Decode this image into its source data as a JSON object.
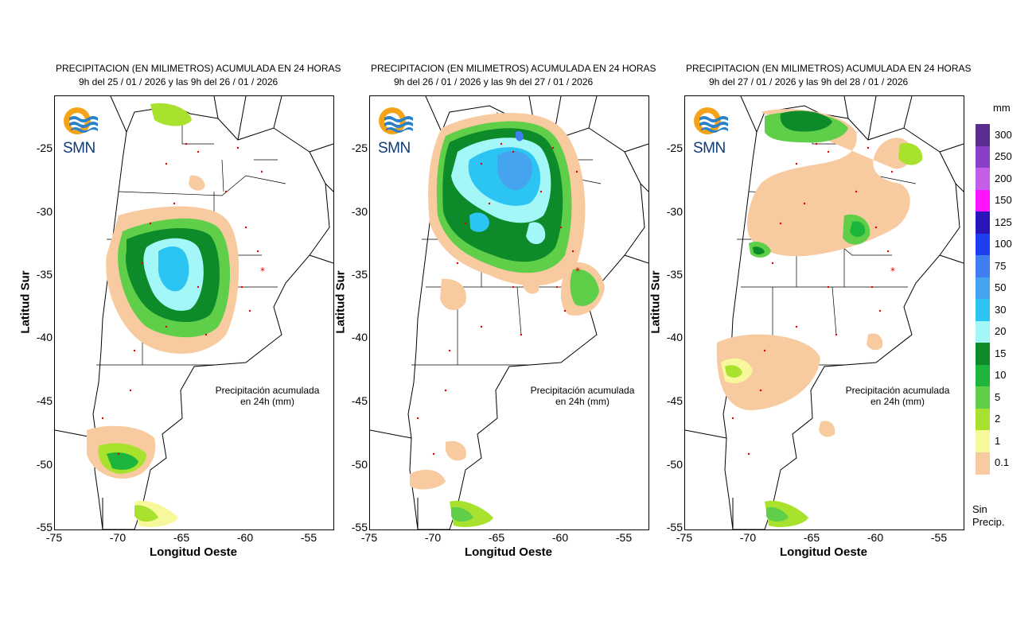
{
  "panels": [
    {
      "title": "PRECIPITACION (EN MILIMETROS) ACUMULADA EN 24 HORAS",
      "subtitle": "9h del 25 / 01 / 2026  y las 9h del 26 / 01 / 2026",
      "note_line1": "Precipitación acumulada",
      "note_line2": "en 24h (mm)"
    },
    {
      "title": "PRECIPITACION (EN MILIMETROS) ACUMULADA EN 24 HORAS",
      "subtitle": "9h del 26 / 01 / 2026  y las 9h del 27 / 01 / 2026",
      "note_line1": "Precipitación acumulada",
      "note_line2": "en 24h (mm)"
    },
    {
      "title": "PRECIPITACION (EN MILIMETROS) ACUMULADA EN 24 HORAS",
      "subtitle": "9h del 27 / 01 / 2026  y las 9h del 28 / 01 / 2026",
      "note_line1": "Precipitación acumulada",
      "note_line2": "en 24h (mm)"
    }
  ],
  "axes": {
    "xlabel": "Longitud Oeste",
    "ylabel": "Latitud Sur",
    "xticks": [
      "-75",
      "-70",
      "-65",
      "-60",
      "-55"
    ],
    "yticks": [
      "-25",
      "-30",
      "-35",
      "-40",
      "-45",
      "-50",
      "-55"
    ]
  },
  "logo": {
    "text": "SMN"
  },
  "legend": {
    "unit": "mm",
    "items": [
      {
        "label": "300",
        "color": "#5c2d91"
      },
      {
        "label": "250",
        "color": "#8a3fc9"
      },
      {
        "label": "200",
        "color": "#c25ee8"
      },
      {
        "label": "150",
        "color": "#ff14ff"
      },
      {
        "label": "125",
        "color": "#2a16b8"
      },
      {
        "label": "100",
        "color": "#1f3ef0"
      },
      {
        "label": "75",
        "color": "#3f7df2"
      },
      {
        "label": "50",
        "color": "#45a3f0"
      },
      {
        "label": "30",
        "color": "#2cc4f2"
      },
      {
        "label": "20",
        "color": "#a4f7f7"
      },
      {
        "label": "15",
        "color": "#0d8a2a"
      },
      {
        "label": "10",
        "color": "#1db53c"
      },
      {
        "label": "5",
        "color": "#5fcf4a"
      },
      {
        "label": "2",
        "color": "#a8e22e"
      },
      {
        "label": "1",
        "color": "#f7f79c"
      },
      {
        "label": "0.1",
        "color": "#f8caa0"
      }
    ],
    "no_precip_line1": "Sin",
    "no_precip_line2": "Precip."
  }
}
